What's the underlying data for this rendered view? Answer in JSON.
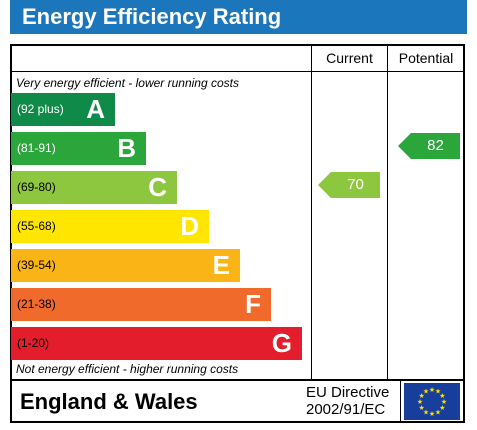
{
  "title": "Energy Efficiency Rating",
  "columns": {
    "current": "Current",
    "potential": "Potential"
  },
  "top_note": "Very energy efficient - lower running costs",
  "bottom_note": "Not energy efficient - higher running costs",
  "bands": [
    {
      "range": "(92 plus)",
      "letter": "A",
      "color": "#0f8a48",
      "range_color": "#ffffff"
    },
    {
      "range": "(81-91)",
      "letter": "B",
      "color": "#2aa63b",
      "range_color": "#ffffff"
    },
    {
      "range": "(69-80)",
      "letter": "C",
      "color": "#8dc63f",
      "range_color": "#000000"
    },
    {
      "range": "(55-68)",
      "letter": "D",
      "color": "#ffe600",
      "range_color": "#000000"
    },
    {
      "range": "(39-54)",
      "letter": "E",
      "color": "#fbb415",
      "range_color": "#000000"
    },
    {
      "range": "(21-38)",
      "letter": "F",
      "color": "#f06b2b",
      "range_color": "#000000"
    },
    {
      "range": "(1-20)",
      "letter": "G",
      "color": "#e31d2b",
      "range_color": "#000000"
    }
  ],
  "current_rating": {
    "value": "70",
    "band": "C",
    "color": "#8dc63f"
  },
  "potential_rating": {
    "value": "82",
    "band": "B",
    "color": "#2aa63b"
  },
  "footer": {
    "country": "England & Wales",
    "directive_line1": "EU Directive",
    "directive_line2": "2002/91/EC"
  }
}
